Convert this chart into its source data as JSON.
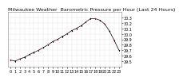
{
  "title": "Milwaukee Weather  Barometric Pressure per Hour (Last 24 Hours)",
  "background_color": "#ffffff",
  "plot_bg_color": "#ffffff",
  "grid_color": "#bbbbbb",
  "color_black": "#000000",
  "color_red": "#dd0000",
  "hours": [
    0,
    1,
    2,
    3,
    4,
    5,
    6,
    7,
    8,
    9,
    10,
    11,
    12,
    13,
    14,
    15,
    16,
    17,
    18,
    19,
    20,
    21,
    22,
    23
  ],
  "pressure": [
    29.52,
    29.5,
    29.54,
    29.57,
    29.62,
    29.66,
    29.7,
    29.75,
    29.8,
    29.86,
    29.9,
    29.95,
    30.0,
    30.06,
    30.1,
    30.15,
    30.22,
    30.28,
    30.28,
    30.25,
    30.18,
    30.05,
    29.88,
    29.7
  ],
  "ylim_min": 29.4,
  "ylim_max": 30.4,
  "yticks": [
    29.5,
    29.6,
    29.7,
    29.8,
    29.9,
    30.0,
    30.1,
    30.2,
    30.3
  ],
  "title_fontsize": 4.5,
  "tick_fontsize": 3.5,
  "marker_size": 1.0,
  "line_width": 0.5
}
